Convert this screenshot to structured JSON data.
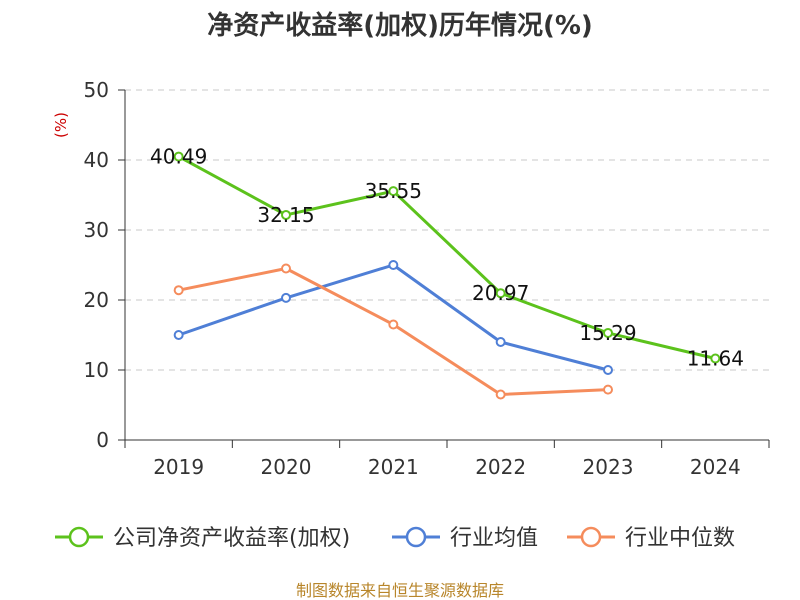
{
  "chart_data": {
    "type": "line",
    "title": "净资产收益率(加权)历年情况(%)",
    "ylabel": "(%)",
    "xlabel": "",
    "ylim": [
      0,
      50
    ],
    "yticks": [
      0,
      10,
      20,
      30,
      40,
      50
    ],
    "grid": true,
    "legend_position": "bottom",
    "categories": [
      "2019",
      "2020",
      "2021",
      "2022",
      "2023",
      "2024"
    ],
    "series": [
      {
        "name": "公司净资产收益率(加权)",
        "color": "#5cc21c",
        "values": [
          40.49,
          32.15,
          35.55,
          20.97,
          15.29,
          11.64
        ],
        "labels": [
          "40.49",
          "32.15",
          "35.55",
          "20.97",
          "15.29",
          "11.64"
        ]
      },
      {
        "name": "行业均值",
        "color": "#4f7fd6",
        "values": [
          15.0,
          20.3,
          25.0,
          14.0,
          10.0,
          null
        ]
      },
      {
        "name": "行业中位数",
        "color": "#f58c5c",
        "values": [
          21.4,
          24.5,
          16.5,
          6.5,
          7.2,
          null
        ]
      }
    ],
    "source": "制图数据来自恒生聚源数据库"
  }
}
